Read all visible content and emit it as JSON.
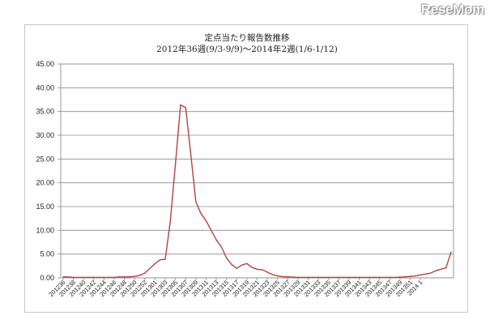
{
  "watermark": "ReseMom",
  "chart_data": {
    "type": "line",
    "title": "定点当たり報告数推移",
    "subtitle": "2012年36週(9/3-9/9)～2014年2週(1/6-1/12)",
    "xlabel": "",
    "ylabel": "",
    "ylim": [
      0,
      45
    ],
    "yticks": [
      "0.00",
      "5.00",
      "10.00",
      "15.00",
      "20.00",
      "25.00",
      "30.00",
      "35.00",
      "40.00",
      "45.00"
    ],
    "grid": "horizontal",
    "legend": "none",
    "line_color": "#b5423f",
    "xtick_labels": [
      "201236",
      "201238",
      "201240",
      "201242",
      "201244",
      "201246",
      "201248",
      "201250",
      "201252",
      "201301",
      "201303",
      "201305",
      "201307",
      "201309",
      "201311",
      "201313",
      "201315",
      "201317",
      "201319",
      "201321",
      "201323",
      "201325",
      "201327",
      "201329",
      "201331",
      "201333",
      "201335",
      "201337",
      "201339",
      "201341",
      "201343",
      "201345",
      "201347",
      "201349",
      "201351",
      "2014 1"
    ],
    "series": [
      {
        "values": [
          0.2,
          0.2,
          0.1,
          0.1,
          0.1,
          0.1,
          0.1,
          0.1,
          0.1,
          0.1,
          0.1,
          0.2,
          0.2,
          0.2,
          0.3,
          0.5,
          1.0,
          2.0,
          3.0,
          3.8,
          3.9,
          12.0,
          24.0,
          36.4,
          35.8,
          26.0,
          16.0,
          13.5,
          12.0,
          10.0,
          8.0,
          6.5,
          4.2,
          2.8,
          2.0,
          2.7,
          3.0,
          2.2,
          1.8,
          1.7,
          1.2,
          0.7,
          0.4,
          0.25,
          0.2,
          0.15,
          0.1,
          0.1,
          0.1,
          0.1,
          0.1,
          0.1,
          0.1,
          0.1,
          0.1,
          0.1,
          0.1,
          0.1,
          0.1,
          0.1,
          0.1,
          0.1,
          0.1,
          0.1,
          0.1,
          0.1,
          0.15,
          0.2,
          0.3,
          0.4,
          0.6,
          0.8,
          1.0,
          1.5,
          1.8,
          2.1,
          5.4
        ]
      }
    ]
  }
}
